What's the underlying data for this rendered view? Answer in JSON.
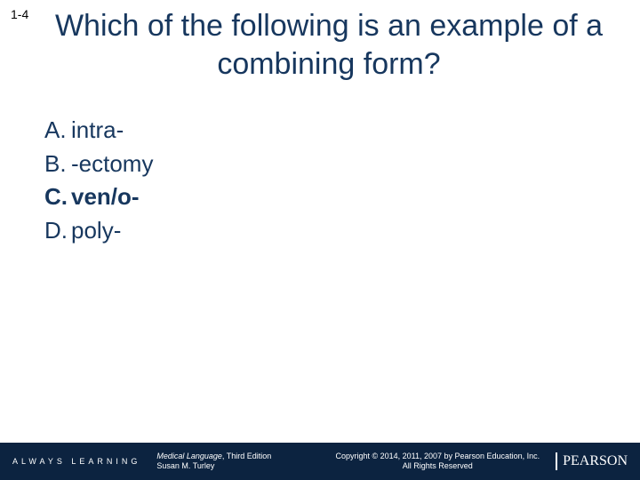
{
  "slide": {
    "number": "1-4",
    "title": "Which of the following is an example of a combining form?",
    "title_color": "#17375e",
    "title_fontsize": 34
  },
  "options": [
    {
      "label": "A.",
      "text": "intra-",
      "bold": false
    },
    {
      "label": "B.",
      "text": "-ectomy",
      "bold": false
    },
    {
      "label": "C.",
      "text": "ven/o-",
      "bold": true
    },
    {
      "label": "D.",
      "text": "poly-",
      "bold": false
    }
  ],
  "options_style": {
    "color": "#17375e",
    "fontsize": 26
  },
  "footer": {
    "background": "#0c2340",
    "always_learning": "ALWAYS LEARNING",
    "book_title_italic": "Medical Language",
    "book_title_rest": ", Third Edition",
    "author": "Susan M. Turley",
    "copyright_line1": "Copyright © 2014, 2011, 2007 by Pearson Education, Inc.",
    "copyright_line2": "All Rights Reserved",
    "brand": "PEARSON"
  }
}
